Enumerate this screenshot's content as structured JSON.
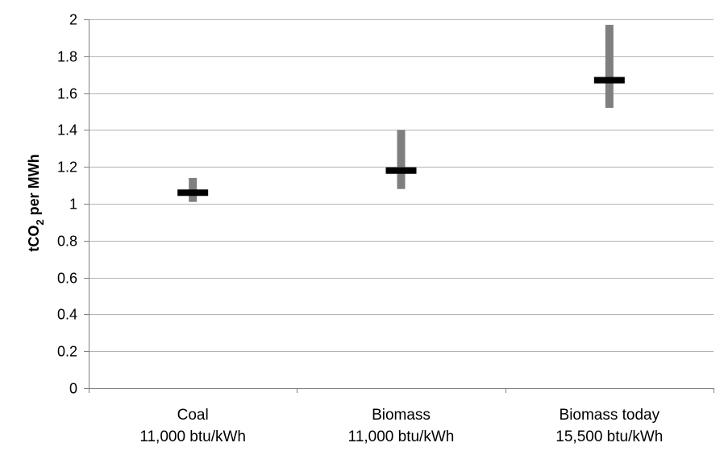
{
  "chart_data": {
    "type": "scatter",
    "title": "",
    "xlabel": "",
    "ylabel": "tCO2 per MWh",
    "ylabel_parts": {
      "prefix": "tCO",
      "subscript": "2",
      "suffix": " per MWh"
    },
    "ylim": [
      0,
      2
    ],
    "yticks": [
      0,
      0.2,
      0.4,
      0.6,
      0.8,
      1,
      1.2,
      1.4,
      1.6,
      1.8,
      2
    ],
    "ytick_labels": [
      "0",
      "0.2",
      "0.4",
      "0.6",
      "0.8",
      "1",
      "1.2",
      "1.4",
      "1.6",
      "1.8",
      "2"
    ],
    "grid": true,
    "categories": [
      {
        "line1": "Coal",
        "line2": "11,000 btu/kWh"
      },
      {
        "line1": "Biomass",
        "line2": "11,000 btu/kWh"
      },
      {
        "line1": "Biomass today",
        "line2": "15,500 btu/kWh"
      }
    ],
    "series": [
      {
        "values": [
          1.06,
          1.18,
          1.67
        ]
      }
    ],
    "ranges": [
      {
        "low": 1.01,
        "high": 1.14
      },
      {
        "low": 1.08,
        "high": 1.4
      },
      {
        "low": 1.52,
        "high": 1.97
      }
    ],
    "colors": {
      "range_bar": "#7f7f7f",
      "point_marker": "#000000",
      "gridline": "#b3b3b3",
      "axis": "#808080"
    }
  }
}
